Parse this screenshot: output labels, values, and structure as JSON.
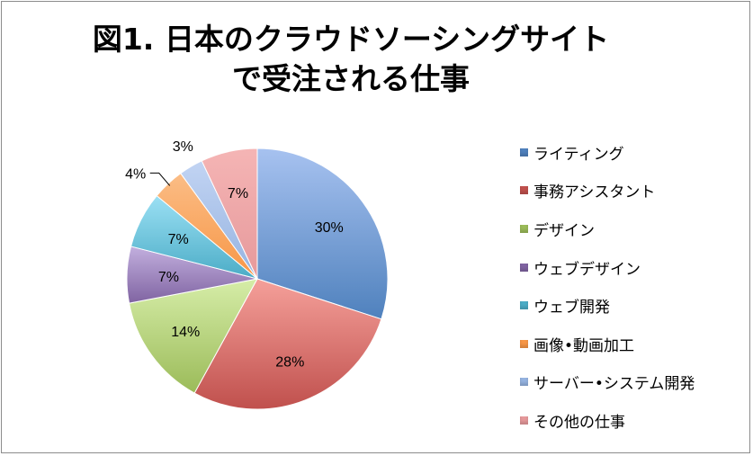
{
  "chart_data": {
    "type": "pie",
    "title_lines": [
      "図1. 日本のクラウドソーシングサイト",
      "で受注される仕事"
    ],
    "categories": [
      "ライティング",
      "事務アシスタント",
      "デザイン",
      "ウェブデザイン",
      "ウェブ開発",
      "画像•動画加工",
      "サーバー•システム開発",
      "その他の仕事"
    ],
    "values": [
      30,
      28,
      14,
      7,
      7,
      4,
      3,
      7
    ],
    "data_labels": [
      "30%",
      "28%",
      "14%",
      "7%",
      "7%",
      "4%",
      "3%",
      "7%"
    ],
    "label_placement": [
      "inside",
      "inside",
      "inside",
      "inside",
      "inside",
      "outside",
      "outside",
      "inside"
    ],
    "colors": [
      "#4f81bd",
      "#c0504d",
      "#9bbb59",
      "#8064a2",
      "#4bacc6",
      "#f79646",
      "#95b3e0",
      "#e6999b"
    ],
    "light_colors": [
      "#a7c2f0",
      "#f5a09a",
      "#d6eda8",
      "#c2afde",
      "#9be0f4",
      "#fbbd86",
      "#c2d4f3",
      "#f5b5b5"
    ],
    "start_angle": "12 o'clock",
    "direction": "clockwise",
    "legend_position": "right"
  }
}
